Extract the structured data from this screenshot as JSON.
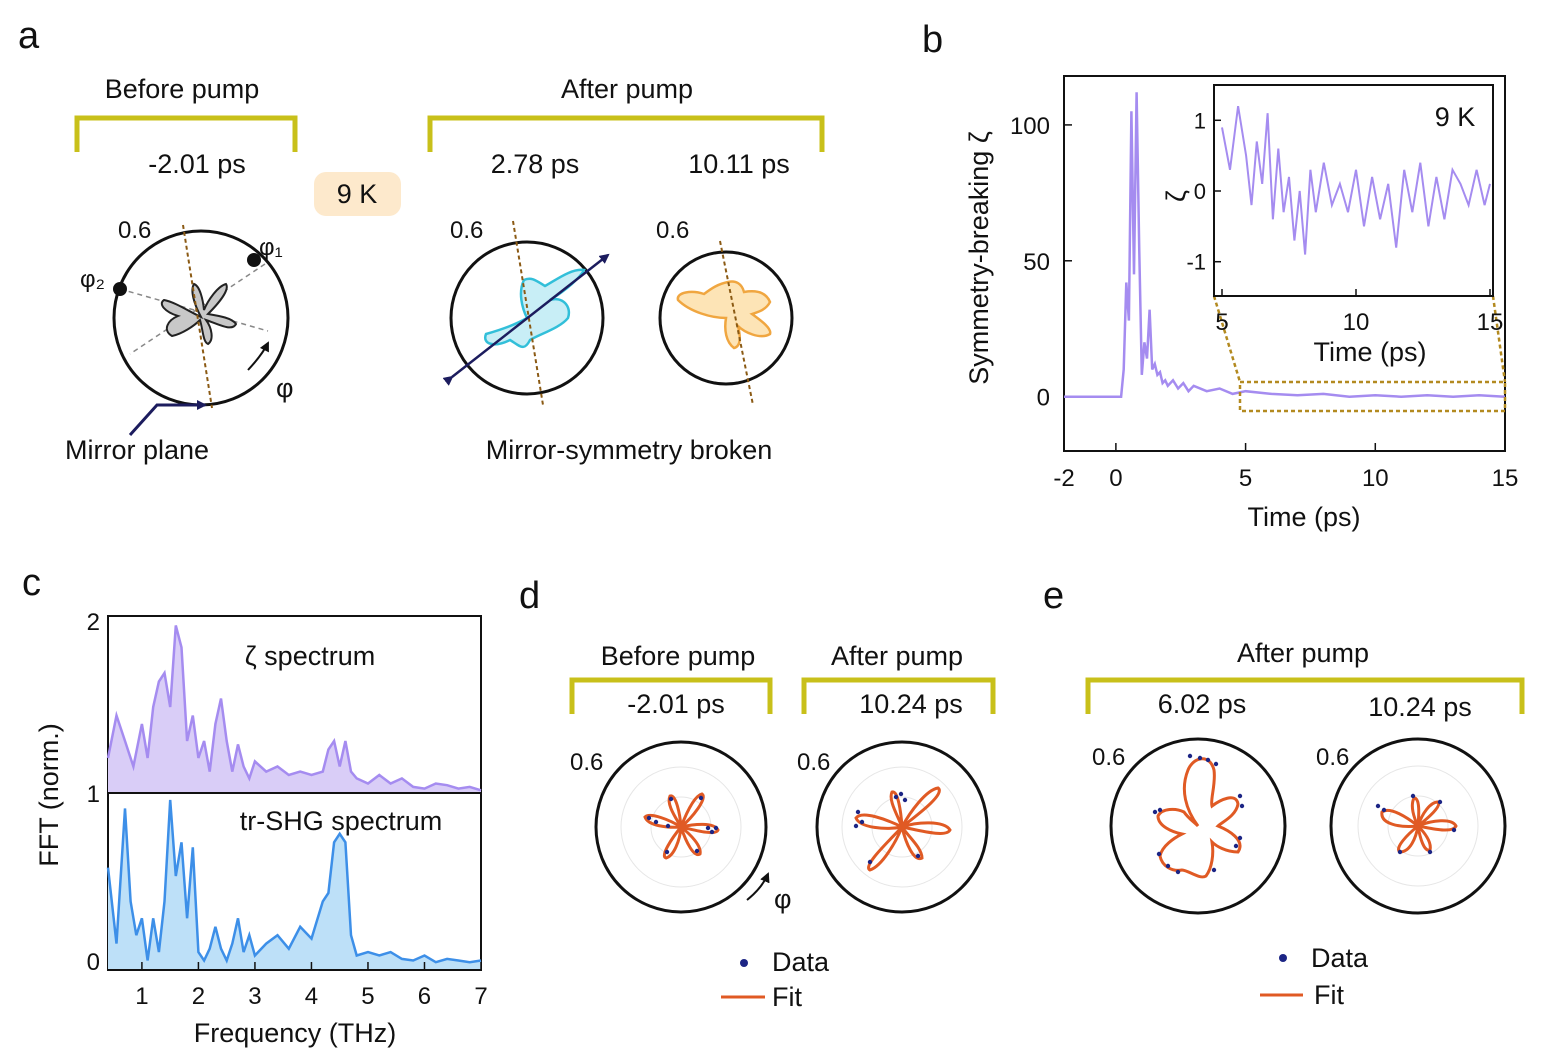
{
  "colors": {
    "bracket": "#c8c01a",
    "zeta": "#a58cf0",
    "zeta_fill": "#d9cdf7",
    "shg": "#3d8fe8",
    "shg_fill": "#bde0f8",
    "fit": "#e05a24",
    "data": "#1c2585",
    "cyan": "#32bfd9",
    "orange": "#f0a640",
    "mirror": "#8b5a14",
    "inset_box": "#b38a20",
    "temp_badge": "#fde9cc"
  },
  "panels": {
    "a": {
      "label": "a",
      "before_title": "Before pump",
      "after_title": "After pump",
      "t_before": "-2.01 ps",
      "t_after1": "2.78 ps",
      "t_after2": "10.11 ps",
      "temp": "9 K",
      "radial_max": "0.6",
      "phi1": "φ₁",
      "phi2": "φ₂",
      "phi": "φ",
      "mirror_plane": "Mirror plane",
      "broken": "Mirror-symmetry broken"
    },
    "b": {
      "label": "b",
      "inset_temp": "9 K"
    },
    "c": {
      "label": "c",
      "zeta_spectrum": "ζ spectrum",
      "shg_spectrum": "tr-SHG spectrum"
    },
    "d": {
      "label": "d",
      "before_title": "Before pump",
      "after_title": "After pump",
      "t1": "-2.01 ps",
      "t2": "10.24 ps",
      "radial_max": "0.6",
      "phi": "φ",
      "legend_data": "Data",
      "legend_fit": "Fit"
    },
    "e": {
      "label": "e",
      "after_title": "After pump",
      "t1": "6.02 ps",
      "t2": "10.24 ps",
      "radial_max": "0.6",
      "legend_data": "Data",
      "legend_fit": "Fit"
    }
  },
  "chart_data": [
    {
      "id": "b-main",
      "type": "line",
      "xlabel": "Time (ps)",
      "ylabel": "Symmetry-breaking ζ",
      "xlim": [
        -2,
        15
      ],
      "ylim": [
        -20,
        118
      ],
      "xticks": [
        -2,
        0,
        5,
        10,
        15
      ],
      "yticks": [
        0,
        50,
        100
      ],
      "x": [
        -2,
        -1,
        0,
        0.2,
        0.3,
        0.4,
        0.5,
        0.6,
        0.7,
        0.8,
        0.9,
        1.0,
        1.1,
        1.2,
        1.3,
        1.4,
        1.5,
        1.6,
        1.7,
        1.8,
        1.9,
        2.0,
        2.2,
        2.4,
        2.6,
        2.8,
        3.0,
        3.5,
        4.0,
        4.5,
        5,
        6,
        7,
        8,
        9,
        10,
        11,
        12,
        13,
        14,
        15
      ],
      "y": [
        0,
        0,
        0,
        0,
        10,
        42,
        28,
        105,
        45,
        112,
        55,
        8,
        20,
        14,
        32,
        10,
        12,
        8,
        9,
        5,
        6,
        4,
        6,
        3,
        5,
        2,
        4,
        2,
        3,
        1,
        2,
        1,
        0.5,
        1,
        0,
        0.5,
        0,
        0.5,
        0,
        0.5,
        0
      ]
    },
    {
      "id": "b-inset",
      "type": "line",
      "xlabel": "Time (ps)",
      "ylabel": "ζ",
      "xlim": [
        5,
        15
      ],
      "ylim": [
        -1.4,
        1.4
      ],
      "xticks": [
        5,
        10,
        15
      ],
      "yticks": [
        -1,
        0,
        1
      ],
      "x": [
        5,
        5.3,
        5.6,
        5.9,
        6.1,
        6.3,
        6.5,
        6.7,
        6.9,
        7.1,
        7.3,
        7.5,
        7.7,
        7.9,
        8.1,
        8.3,
        8.5,
        8.8,
        9.1,
        9.4,
        9.7,
        10.0,
        10.3,
        10.6,
        10.9,
        11.2,
        11.5,
        11.8,
        12.1,
        12.4,
        12.7,
        13.0,
        13.3,
        13.6,
        13.9,
        14.2,
        14.5,
        14.8,
        15
      ],
      "y": [
        0.9,
        0.3,
        1.2,
        0.5,
        -0.2,
        0.7,
        0.1,
        1.1,
        -0.4,
        0.6,
        -0.3,
        0.2,
        -0.7,
        0.0,
        -0.9,
        0.3,
        -0.3,
        0.4,
        -0.2,
        0.1,
        -0.3,
        0.3,
        -0.5,
        0.2,
        -0.4,
        0.1,
        -0.8,
        0.3,
        -0.3,
        0.4,
        -0.5,
        0.2,
        -0.4,
        0.3,
        0.1,
        -0.2,
        0.3,
        -0.2,
        0.1
      ]
    },
    {
      "id": "c-zeta",
      "type": "area",
      "xlim": [
        0.4,
        7
      ],
      "ylim": [
        0,
        1
      ],
      "x": [
        0.4,
        0.55,
        0.7,
        0.85,
        1.0,
        1.1,
        1.2,
        1.3,
        1.4,
        1.5,
        1.6,
        1.7,
        1.8,
        1.9,
        2.0,
        2.1,
        2.2,
        2.3,
        2.4,
        2.5,
        2.6,
        2.7,
        2.8,
        2.9,
        3.0,
        3.2,
        3.4,
        3.6,
        3.8,
        4.0,
        4.2,
        4.3,
        4.4,
        4.5,
        4.6,
        4.7,
        4.8,
        5.0,
        5.2,
        5.4,
        5.6,
        5.8,
        6.0,
        6.2,
        6.4,
        6.6,
        6.8,
        7.0
      ],
      "y": [
        0.2,
        0.45,
        0.3,
        0.15,
        0.4,
        0.2,
        0.5,
        0.65,
        0.7,
        0.5,
        0.98,
        0.85,
        0.3,
        0.45,
        0.2,
        0.3,
        0.12,
        0.4,
        0.55,
        0.3,
        0.12,
        0.28,
        0.15,
        0.08,
        0.18,
        0.12,
        0.15,
        0.1,
        0.12,
        0.1,
        0.12,
        0.25,
        0.3,
        0.15,
        0.3,
        0.12,
        0.08,
        0.05,
        0.1,
        0.05,
        0.08,
        0.03,
        0.02,
        0.05,
        0.04,
        0.02,
        0.03,
        0.01
      ]
    },
    {
      "id": "c-shg",
      "type": "area",
      "xlabel": "Frequency (THz)",
      "ylabel": "FFT (norm.)",
      "xlim": [
        0.4,
        7
      ],
      "ylim": [
        0,
        1
      ],
      "xticks": [
        1,
        2,
        3,
        4,
        5,
        6,
        7
      ],
      "yticks_labels": [
        "0",
        "1",
        "2"
      ],
      "x": [
        0.4,
        0.55,
        0.7,
        0.8,
        0.9,
        1.0,
        1.1,
        1.2,
        1.3,
        1.4,
        1.5,
        1.6,
        1.7,
        1.8,
        1.9,
        2.0,
        2.1,
        2.2,
        2.3,
        2.4,
        2.5,
        2.6,
        2.7,
        2.8,
        2.9,
        3.0,
        3.2,
        3.4,
        3.6,
        3.8,
        4.0,
        4.2,
        4.3,
        4.4,
        4.5,
        4.6,
        4.7,
        4.8,
        5.0,
        5.2,
        5.4,
        5.6,
        5.8,
        6.0,
        6.2,
        6.4,
        6.6,
        6.8,
        7.0
      ],
      "y": [
        0.6,
        0.15,
        0.95,
        0.4,
        0.2,
        0.3,
        0.05,
        0.3,
        0.1,
        0.4,
        1.0,
        0.55,
        0.75,
        0.3,
        0.72,
        0.1,
        0.05,
        0.12,
        0.25,
        0.12,
        0.05,
        0.15,
        0.3,
        0.1,
        0.2,
        0.08,
        0.15,
        0.2,
        0.12,
        0.25,
        0.18,
        0.4,
        0.45,
        0.75,
        0.8,
        0.75,
        0.2,
        0.08,
        0.1,
        0.08,
        0.1,
        0.06,
        0.05,
        0.08,
        0.04,
        0.06,
        0.05,
        0.04,
        0.05
      ]
    }
  ]
}
